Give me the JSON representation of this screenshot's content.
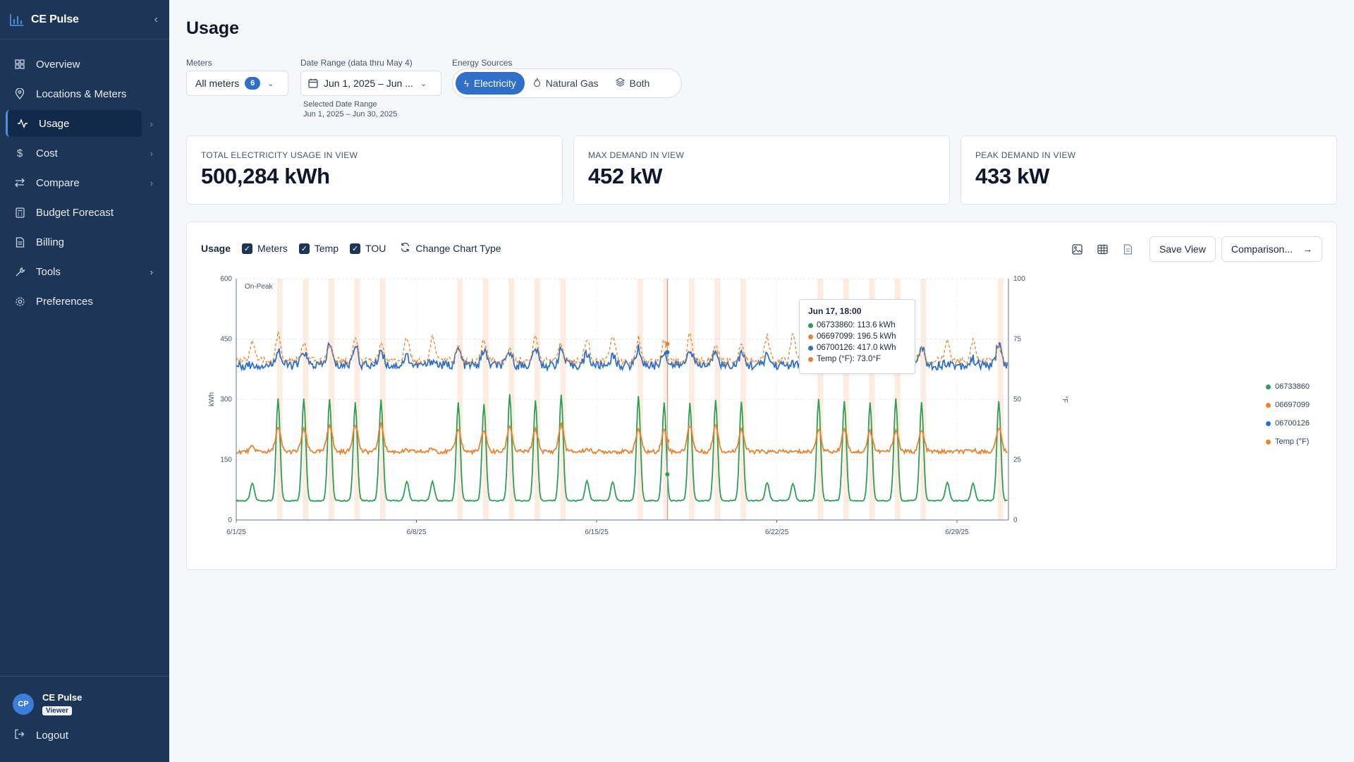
{
  "app": {
    "name": "CE Pulse"
  },
  "sidebar": {
    "items": [
      {
        "label": "Overview",
        "icon": "grid-icon"
      },
      {
        "label": "Locations & Meters",
        "icon": "map-pin-icon"
      },
      {
        "label": "Usage",
        "icon": "activity-icon",
        "active": true
      },
      {
        "label": "Cost",
        "icon": "dollar-icon"
      },
      {
        "label": "Compare",
        "icon": "swap-icon"
      },
      {
        "label": "Budget Forecast",
        "icon": "calculator-icon"
      },
      {
        "label": "Billing",
        "icon": "document-icon"
      },
      {
        "label": "Tools",
        "icon": "wrench-icon"
      },
      {
        "label": "Preferences",
        "icon": "gear-icon"
      }
    ],
    "user": {
      "initials": "CP",
      "name": "CE Pulse",
      "role": "Viewer"
    },
    "logout_label": "Logout"
  },
  "page": {
    "title": "Usage"
  },
  "filters": {
    "meters": {
      "label": "Meters",
      "value": "All meters",
      "count": "6"
    },
    "date_range": {
      "label": "Date Range (data thru May 4)",
      "value": "Jun 1, 2025 – Jun ...",
      "hint_label": "Selected Date Range",
      "hint_value": "Jun 1, 2025 – Jun 30, 2025"
    },
    "energy_sources": {
      "label": "Energy Sources",
      "options": [
        "Electricity",
        "Natural Gas",
        "Both"
      ],
      "selected": "Electricity"
    }
  },
  "kpis": [
    {
      "label": "TOTAL ELECTRICITY USAGE IN VIEW",
      "value": "500,284 kWh"
    },
    {
      "label": "MAX DEMAND IN VIEW",
      "value": "452 kW"
    },
    {
      "label": "PEAK DEMAND IN VIEW",
      "value": "433 kW"
    }
  ],
  "chart_toolbar": {
    "title": "Usage",
    "toggles": [
      {
        "label": "Meters",
        "checked": true
      },
      {
        "label": "Temp",
        "checked": true
      },
      {
        "label": "TOU",
        "checked": true
      }
    ],
    "change_type_label": "Change Chart Type",
    "save_label": "Save View",
    "comparison_label": "Comparison..."
  },
  "tooltip": {
    "title": "Jun 17, 18:00",
    "rows": [
      {
        "text": "06733860: 113.6 kWh",
        "color": "#2e9e57"
      },
      {
        "text": "06697099: 196.5 kWh",
        "color": "#e8822f"
      },
      {
        "text": "06700126: 417.0 kWh",
        "color": "#2f6fc7"
      },
      {
        "text": "Temp (°F): 73.0°F",
        "color": "#e8822f"
      }
    ]
  },
  "chart_data": {
    "type": "line",
    "x_range": [
      "2025-06-01",
      "2025-06-30"
    ],
    "x_ticks": [
      "6/1/25",
      "6/8/25",
      "6/15/25",
      "6/22/25",
      "6/29/25"
    ],
    "ylabel": "kWh",
    "ylim": [
      0,
      600
    ],
    "y_ticks": [
      0,
      150,
      300,
      450,
      600
    ],
    "y2label": "°F",
    "y2lim": [
      0,
      100
    ],
    "y2_ticks": [
      0,
      25,
      50,
      75,
      100
    ],
    "band_label": "On-Peak",
    "legend_position": "right",
    "series": [
      {
        "name": "06733860",
        "color": "#2e9e57",
        "axis": "left",
        "baseline": 48,
        "weekday_peak": 300,
        "weekend_peak": 95
      },
      {
        "name": "06697099",
        "color": "#e8822f",
        "axis": "left",
        "baseline": 170,
        "weekday_peak": 230,
        "weekend_peak": 175
      },
      {
        "name": "06700126",
        "color": "#2f6fc7",
        "axis": "left",
        "baseline": 385,
        "weekday_peak": 425,
        "weekend_peak": 400
      },
      {
        "name": "Temp (°F)",
        "color": "#e8822f",
        "axis": "right",
        "dashed": true,
        "baseline": 66,
        "daily_peak": 71
      }
    ],
    "weekend_days": [
      "2025-06-01",
      "2025-06-07",
      "2025-06-08",
      "2025-06-14",
      "2025-06-15",
      "2025-06-21",
      "2025-06-22",
      "2025-06-28",
      "2025-06-29"
    ],
    "hover_point": {
      "x": "2025-06-17 18:00",
      "values": {
        "06733860": 113.6,
        "06697099": 196.5,
        "06700126": 417.0,
        "Temp (°F)": 73.0
      }
    }
  }
}
